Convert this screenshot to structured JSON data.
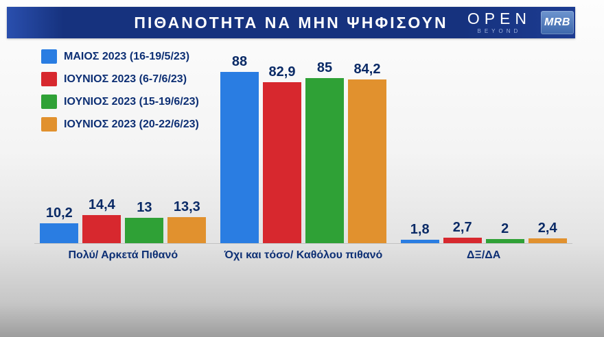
{
  "header": {
    "title": "ΠΙΘΑΝΟΤΗΤΑ ΝΑ ΜΗΝ ΨΗΦΙΣΟΥΝ",
    "open_logo": "OPEN",
    "open_sub": "BEYOND",
    "mrb_logo": "MRB"
  },
  "colors": {
    "header_navy": "#16327e",
    "text_navy": "#0d2f74",
    "value_navy": "#0a2a66",
    "blue": "#2a7de2",
    "red": "#d7282e",
    "green": "#2fa136",
    "orange": "#e1912e"
  },
  "chart_data": {
    "type": "bar",
    "title": "ΠΙΘΑΝΟΤΗΤΑ ΝΑ ΜΗΝ ΨΗΦΙΣΟΥΝ",
    "categories": [
      "Πολύ/ Αρκετά Πιθανό",
      "Όχι και τόσο/ Καθόλου πιθανό",
      "ΔΞ/ΔΑ"
    ],
    "series": [
      {
        "name": "ΜΑΙΟΣ 2023 (16-19/5/23)",
        "color": "#2a7de2",
        "values": [
          10.2,
          88,
          1.8
        ],
        "labels": [
          "10,2",
          "88",
          "1,8"
        ]
      },
      {
        "name": "ΙΟΥΝΙΟΣ 2023 (6-7/6/23)",
        "color": "#d7282e",
        "values": [
          14.4,
          82.9,
          2.7
        ],
        "labels": [
          "14,4",
          "82,9",
          "2,7"
        ]
      },
      {
        "name": "ΙΟΥΝΙΟΣ 2023 (15-19/6/23)",
        "color": "#2fa136",
        "values": [
          13,
          85,
          2
        ],
        "labels": [
          "13",
          "85",
          "2"
        ]
      },
      {
        "name": "ΙΟΥΝΙΟΣ 2023 (20-22/6/23)",
        "color": "#e1912e",
        "values": [
          13.3,
          84.2,
          2.4
        ],
        "labels": [
          "13,3",
          "84,2",
          "2,4"
        ]
      }
    ],
    "xlabel": "",
    "ylabel": "",
    "ylim": [
      0,
      100
    ],
    "grid": false,
    "legend_position": "top-left",
    "value_label_decimal_separator": ","
  }
}
